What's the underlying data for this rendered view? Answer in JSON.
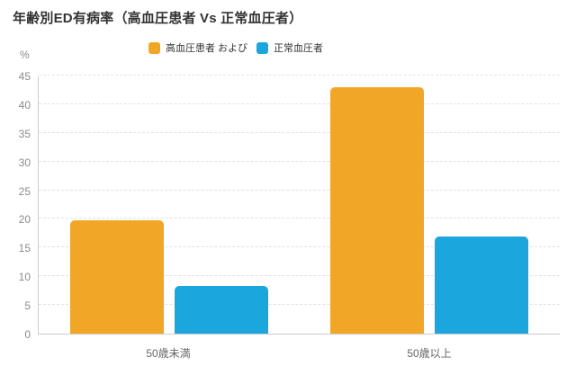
{
  "title": "年齢別ED有病率（高血圧患者 Vs 正常血圧者）",
  "unit_label": "%",
  "chart_data": {
    "type": "bar",
    "title": "年齢別ED有病率（高血圧患者 Vs 正常血圧者）",
    "categories": [
      "50歳未満",
      "50歳以上"
    ],
    "series": [
      {
        "name": "高血圧患者 および",
        "color": "#F1A625",
        "values": [
          19.7,
          43
        ]
      },
      {
        "name": "正常血圧者",
        "color": "#1BA6DE",
        "values": [
          8.3,
          17
        ]
      }
    ],
    "ylabel": "%",
    "ylim": [
      0,
      45
    ],
    "ytick_step": 5,
    "grid": true,
    "gridline_style": "dashed",
    "legend_position": "top"
  }
}
